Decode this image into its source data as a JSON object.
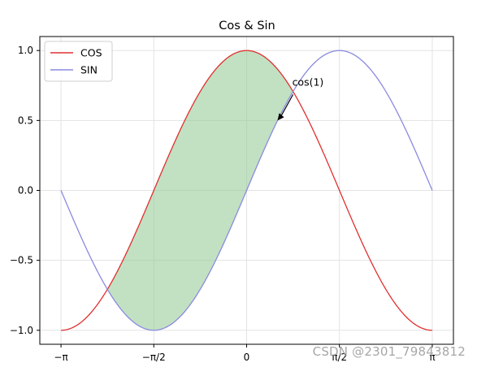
{
  "chart_data": {
    "type": "line",
    "title": "Cos & Sin",
    "xlabel": "",
    "ylabel": "",
    "xlim": [
      -3.5,
      3.5
    ],
    "ylim": [
      -1.1,
      1.1
    ],
    "xticks": [
      {
        "value": -3.14159,
        "label": "−π"
      },
      {
        "value": -1.5708,
        "label": "−π/2"
      },
      {
        "value": 0,
        "label": "0"
      },
      {
        "value": 1.5708,
        "label": "π/2"
      },
      {
        "value": 3.14159,
        "label": "π"
      }
    ],
    "yticks": [
      {
        "value": -1.0,
        "label": "−1.0"
      },
      {
        "value": -0.5,
        "label": "−0.5"
      },
      {
        "value": 0.0,
        "label": "0.0"
      },
      {
        "value": 0.5,
        "label": "0.5"
      },
      {
        "value": 1.0,
        "label": "1.0"
      }
    ],
    "grid": true,
    "legend_position": "top-left",
    "series": [
      {
        "name": "COS",
        "function": "cos",
        "color": "#e03030",
        "x_range": [
          -3.14159,
          3.14159
        ]
      },
      {
        "name": "SIN",
        "function": "sin",
        "color": "#8a8ae0",
        "x_range": [
          -3.14159,
          3.14159
        ]
      }
    ],
    "fill_between": {
      "x_range": [
        -2.356,
        0.785
      ],
      "color": "#8fc98f",
      "condition": "sin >= cos"
    },
    "annotation": {
      "text": "cos(1)",
      "point": [
        0.5236,
        0.5
      ]
    }
  },
  "watermark": "CSDN @2301_79843812"
}
